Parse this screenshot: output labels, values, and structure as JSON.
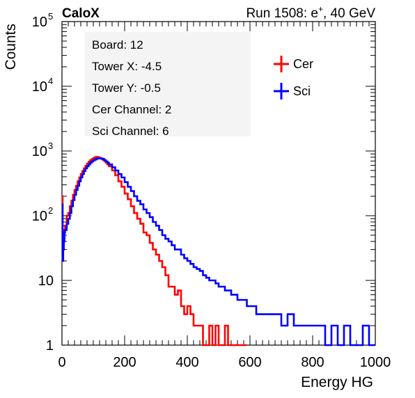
{
  "header": {
    "experiment": "CaloX",
    "run_prefix": "Run 1508: e",
    "run_sup": "+",
    "run_suffix": ", 40 GeV"
  },
  "info_box": {
    "lines": [
      "Board: 12",
      "Tower X: -4.5",
      "Tower Y: -0.5",
      "Cer Channel: 2",
      "Sci Channel: 6"
    ]
  },
  "chart_data": {
    "type": "line",
    "step": true,
    "xlabel": "Energy HG",
    "ylabel": "Counts",
    "xlim": [
      0,
      1000
    ],
    "ylim": [
      1,
      100000
    ],
    "y_scale": "log",
    "x_ticks": [
      {
        "value": 0,
        "label": "0"
      },
      {
        "value": 200,
        "label": "200"
      },
      {
        "value": 400,
        "label": "400"
      },
      {
        "value": 600,
        "label": "600"
      },
      {
        "value": 800,
        "label": "800"
      },
      {
        "value": 1000,
        "label": "1000"
      }
    ],
    "y_ticks": [
      {
        "value": 1,
        "base": "1",
        "exp": ""
      },
      {
        "value": 10,
        "base": "10",
        "exp": ""
      },
      {
        "value": 100,
        "base": "10",
        "exp": "2"
      },
      {
        "value": 1000,
        "base": "10",
        "exp": "3"
      },
      {
        "value": 10000,
        "base": "10",
        "exp": "4"
      },
      {
        "value": 100000,
        "base": "10",
        "exp": "5"
      }
    ],
    "grid": false,
    "legend_position": "top-right",
    "series": [
      {
        "name": "Cer",
        "color": "#ff0000",
        "x": [
          0,
          2,
          4,
          6,
          8,
          10,
          15,
          20,
          25,
          30,
          35,
          40,
          45,
          50,
          55,
          60,
          65,
          70,
          75,
          80,
          85,
          90,
          95,
          100,
          105,
          110,
          115,
          120,
          125,
          130,
          135,
          140,
          145,
          150,
          160,
          170,
          180,
          190,
          200,
          210,
          220,
          230,
          240,
          250,
          260,
          270,
          280,
          290,
          300,
          310,
          320,
          330,
          340,
          350,
          360,
          370,
          380,
          390,
          400,
          410,
          420,
          430,
          440,
          450,
          460,
          470,
          480,
          490,
          500,
          510,
          520,
          530,
          540,
          550,
          560,
          570,
          580
        ],
        "y": [
          200,
          60,
          40,
          45,
          60,
          70,
          100,
          110,
          140,
          170,
          210,
          250,
          290,
          340,
          390,
          440,
          490,
          540,
          590,
          640,
          680,
          720,
          750,
          780,
          800,
          810,
          800,
          780,
          760,
          730,
          700,
          660,
          620,
          580,
          500,
          420,
          340,
          280,
          220,
          180,
          140,
          110,
          90,
          75,
          55,
          50,
          38,
          30,
          25,
          20,
          16,
          12,
          8,
          8,
          6,
          7,
          4,
          3,
          4,
          3,
          2,
          2,
          2,
          1,
          1,
          2,
          1,
          2,
          1,
          1,
          2,
          1,
          1,
          1,
          1,
          1,
          1
        ]
      },
      {
        "name": "Sci",
        "color": "#0000ff",
        "x": [
          0,
          2,
          4,
          6,
          8,
          10,
          15,
          20,
          25,
          30,
          35,
          40,
          45,
          50,
          55,
          60,
          65,
          70,
          75,
          80,
          85,
          90,
          95,
          100,
          105,
          110,
          115,
          120,
          125,
          130,
          135,
          140,
          145,
          150,
          160,
          170,
          180,
          190,
          200,
          210,
          220,
          230,
          240,
          250,
          260,
          270,
          280,
          290,
          300,
          310,
          320,
          330,
          340,
          350,
          360,
          370,
          380,
          390,
          400,
          410,
          420,
          430,
          440,
          450,
          460,
          470,
          480,
          490,
          500,
          510,
          520,
          530,
          540,
          550,
          560,
          570,
          580,
          590,
          600,
          610,
          620,
          640,
          660,
          680,
          700,
          720,
          740,
          760,
          780,
          800,
          820,
          840,
          860,
          880,
          900,
          920,
          940,
          960,
          980,
          1000
        ],
        "y": [
          150,
          20,
          30,
          40,
          55,
          60,
          75,
          90,
          110,
          140,
          175,
          210,
          250,
          290,
          340,
          390,
          440,
          490,
          540,
          580,
          620,
          660,
          690,
          720,
          740,
          760,
          770,
          770,
          760,
          750,
          720,
          690,
          660,
          620,
          560,
          500,
          440,
          390,
          330,
          280,
          240,
          200,
          170,
          150,
          125,
          110,
          95,
          80,
          70,
          60,
          50,
          44,
          40,
          35,
          30,
          30,
          25,
          22,
          20,
          18,
          16,
          15,
          14,
          12,
          11,
          10,
          10,
          9,
          8,
          8,
          7,
          7,
          6,
          6,
          5,
          5,
          5,
          4,
          4,
          4,
          3,
          3,
          3,
          3,
          2,
          3,
          2,
          2,
          2,
          2,
          2,
          1,
          2,
          1,
          2,
          1,
          1,
          2,
          1,
          1
        ]
      }
    ]
  }
}
